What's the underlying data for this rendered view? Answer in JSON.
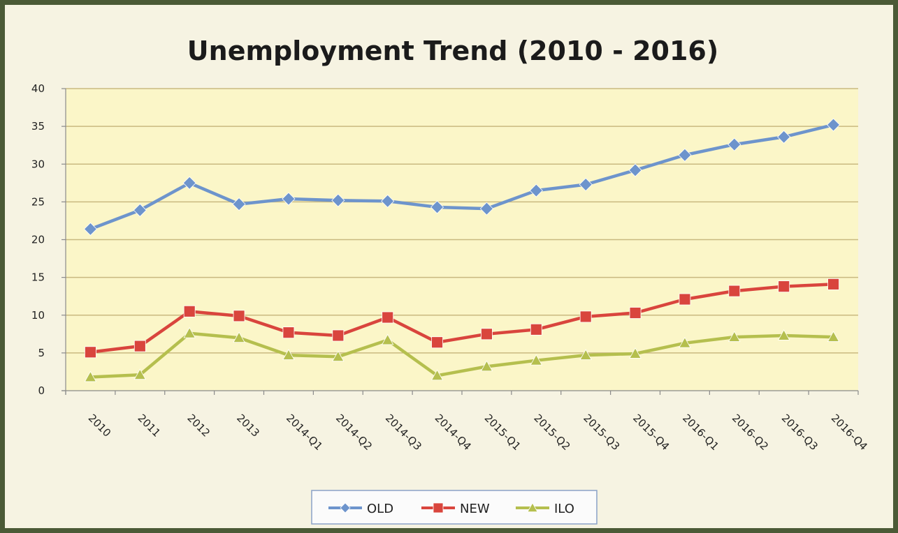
{
  "chart_data": {
    "type": "line",
    "title": "Unemployment Trend (2010 - 2016)",
    "xlabel": "",
    "ylabel": "",
    "ylim": [
      0,
      40
    ],
    "yticks": [
      0,
      5,
      10,
      15,
      20,
      25,
      30,
      35,
      40
    ],
    "grid": true,
    "legend_position": "bottom",
    "categories": [
      "2010",
      "2011",
      "2012",
      "2013",
      "2014-Q1",
      "2014-Q2",
      "2014-Q3",
      "2014-Q4",
      "2015-Q1",
      "2015-Q2",
      "2015-Q3",
      "2015-Q4",
      "2016-Q1",
      "2016-Q2",
      "2016-Q3",
      "2016-Q4"
    ],
    "series": [
      {
        "name": "OLD",
        "color": "#6d94cc",
        "marker": "diamond",
        "values": [
          21.4,
          23.9,
          27.5,
          24.7,
          25.4,
          25.2,
          25.1,
          24.3,
          24.1,
          26.5,
          27.3,
          29.2,
          31.2,
          32.6,
          33.6,
          35.2
        ]
      },
      {
        "name": "NEW",
        "color": "#d9453d",
        "marker": "square",
        "values": [
          5.1,
          5.9,
          10.5,
          9.9,
          7.7,
          7.3,
          9.7,
          6.4,
          7.5,
          8.1,
          9.8,
          10.3,
          12.1,
          13.2,
          13.8,
          14.1
        ]
      },
      {
        "name": "ILO",
        "color": "#b5bf4e",
        "marker": "triangle",
        "values": [
          1.8,
          2.1,
          7.6,
          7.0,
          4.7,
          4.5,
          6.7,
          2.0,
          3.2,
          4.0,
          4.7,
          4.9,
          6.3,
          7.1,
          7.3,
          7.1
        ]
      }
    ]
  },
  "colors": {
    "frame_border": "#4b5a36",
    "page_background": "#f6f3e2",
    "plot_background": "#fbf6c8",
    "gridline": "#c9b980",
    "axis_line": "#8a8a8a"
  }
}
